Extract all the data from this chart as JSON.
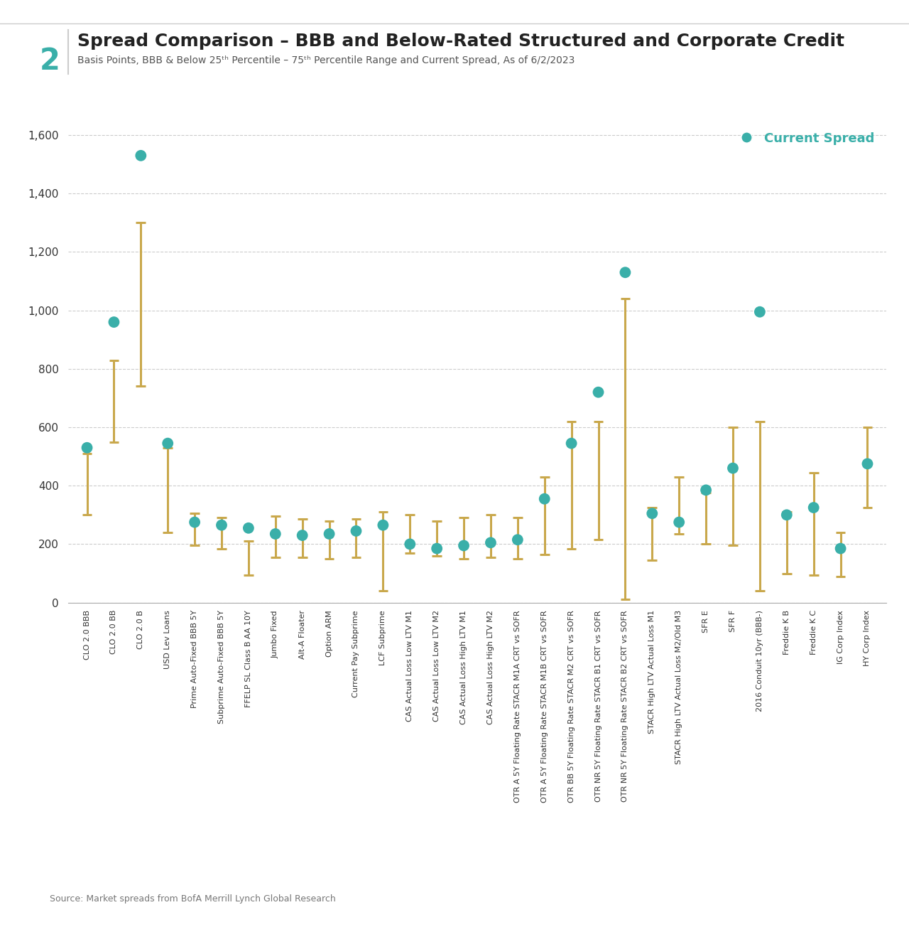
{
  "title": "Spread Comparison – BBB and Below-Rated Structured and Corporate Credit",
  "subtitle": "Basis Points, BBB & Below 25ᵗʰ Percentile – 75ᵗʰ Percentile Range and Current Spread, As of 6/2/2023",
  "figure_number": "2",
  "source": "Source: Market spreads from BofA Merrill Lynch Global Research",
  "categories": [
    "CLO 2.0 BBB",
    "CLO 2.0 BB",
    "CLO 2.0 B",
    "USD Lev Loans",
    "Prime Auto-Fixed BBB 5Y",
    "Subprime Auto-Fixed BBB 5Y",
    "FFELP SL Class B AA 10Y",
    "Jumbo Fixed",
    "Alt-A Floater",
    "Option ARM",
    "Current Pay Subprime",
    "LCF Subprime",
    "CAS Actual Loss Low LTV M1",
    "CAS Actual Loss Low LTV M2",
    "CAS Actual Loss High LTV M1",
    "CAS Actual Loss High LTV M2",
    "OTR A 5Y Floating Rate STACR M1A CRT vs SOFR",
    "OTR A 5Y Floating Rate STACR M1B CRT vs SOFR",
    "OTR BB 5Y Floating Rate STACR M2 CRT vs SOFR",
    "OTR NR 5Y Floating Rate STACR B1 CRT vs SOFR",
    "OTR NR 5Y Floating Rate STACR B2 CRT vs SOFR",
    "STACR High LTV Actual Loss M1",
    "STACR High LTV Actual Loss M2/Old M3",
    "SFR E",
    "SFR F",
    "2016 Conduit 10yr (BBB-)",
    "Freddie K B",
    "Freddie K C",
    "IG Corp Index",
    "HY Corp Index"
  ],
  "current_spread": [
    530,
    960,
    1530,
    545,
    275,
    265,
    255,
    235,
    230,
    235,
    245,
    265,
    200,
    185,
    195,
    205,
    215,
    355,
    545,
    720,
    1130,
    305,
    275,
    385,
    460,
    995,
    300,
    325,
    185,
    475
  ],
  "p25": [
    300,
    550,
    740,
    240,
    195,
    185,
    95,
    155,
    155,
    150,
    155,
    40,
    170,
    160,
    150,
    155,
    150,
    165,
    185,
    215,
    10,
    145,
    235,
    200,
    195,
    40,
    100,
    95,
    90,
    325
  ],
  "p75": [
    510,
    830,
    1300,
    530,
    305,
    290,
    210,
    295,
    285,
    280,
    285,
    310,
    300,
    280,
    290,
    300,
    290,
    430,
    620,
    620,
    1040,
    325,
    430,
    375,
    600,
    620,
    310,
    445,
    240,
    600
  ],
  "dot_color": "#3aafa9",
  "bar_color": "#c9a84c",
  "background_color": "#ffffff",
  "ylim": [
    0,
    1650
  ],
  "yticks": [
    0,
    200,
    400,
    600,
    800,
    1000,
    1200,
    1400,
    1600
  ],
  "grid_color": "#cccccc",
  "title_color": "#222222",
  "subtitle_color": "#555555",
  "axis_label_color": "#333333",
  "top_border_color": "#cccccc",
  "figure_num_color": "#3aafa9",
  "separator_color": "#cccccc",
  "legend_label_color": "#3aafa9",
  "source_color": "#777777"
}
